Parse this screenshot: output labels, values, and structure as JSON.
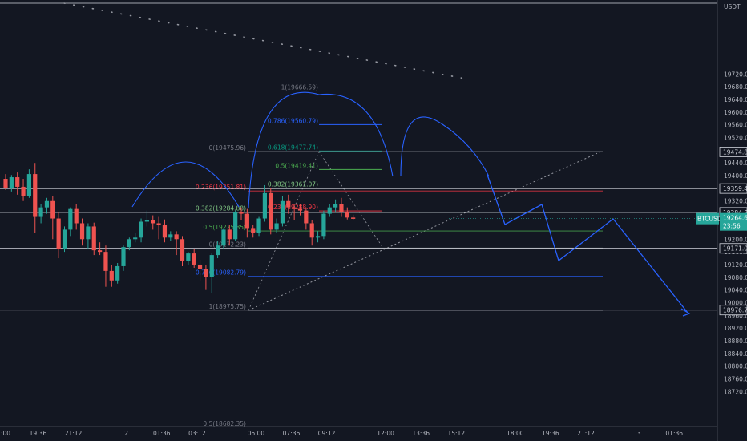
{
  "chart_data": {
    "type": "candlestick",
    "symbol": "BTCUSDT",
    "currency_label": "USDT",
    "countdown": "23:56",
    "ylim": [
      18680,
      19800
    ],
    "y_ticks": [
      19720,
      19680,
      19640,
      19600,
      19560,
      19520,
      19480,
      19440,
      19400,
      19360,
      19320,
      19280,
      19240,
      19200,
      19160,
      19120,
      19080,
      19040,
      19000,
      18960,
      18920,
      18880,
      18840,
      18800,
      18760,
      18720
    ],
    "y_tick_labels": [
      "19720.00",
      "19680.00",
      "19640.00",
      "19600.00",
      "19560.00",
      "19520.00",
      "19480.00",
      "19440.00",
      "19400.00",
      "19360.00",
      "19320.00",
      "19280.00",
      "19240.00",
      "19200.00",
      "19160.00",
      "19120.00",
      "19080.00",
      "19040.00",
      "19000.00",
      "18960.00",
      "18920.00",
      "18880.00",
      "18840.00",
      "18800.00",
      "18760.00",
      "18720.00"
    ],
    "x_labels": [
      {
        "label": ":00",
        "bar": 0
      },
      {
        "label": "19:36",
        "bar": 5.5
      },
      {
        "label": "21:12",
        "bar": 11.5
      },
      {
        "label": "2",
        "bar": 20.5
      },
      {
        "label": "01:36",
        "bar": 26.5
      },
      {
        "label": "03:12",
        "bar": 32.5
      },
      {
        "label": "06:00",
        "bar": 42.5
      },
      {
        "label": "07:36",
        "bar": 48.5
      },
      {
        "label": "09:12",
        "bar": 54.5
      },
      {
        "label": "12:00",
        "bar": 64.5
      },
      {
        "label": "13:36",
        "bar": 70.5
      },
      {
        "label": "15:12",
        "bar": 76.5
      },
      {
        "label": "18:00",
        "bar": 86.5
      },
      {
        "label": "19:36",
        "bar": 92.5
      },
      {
        "label": "21:12",
        "bar": 98.5
      },
      {
        "label": "3",
        "bar": 107.5
      },
      {
        "label": "01:36",
        "bar": 113.5
      }
    ],
    "candles": [
      {
        "o": 19390,
        "h": 19405,
        "c": 19360,
        "l": 19355
      },
      {
        "o": 19360,
        "h": 19402,
        "c": 19395,
        "l": 19350
      },
      {
        "o": 19395,
        "h": 19410,
        "c": 19365,
        "l": 19340
      },
      {
        "o": 19365,
        "h": 19390,
        "c": 19335,
        "l": 19320
      },
      {
        "o": 19335,
        "h": 19420,
        "c": 19405,
        "l": 19330
      },
      {
        "o": 19405,
        "h": 19440,
        "c": 19270,
        "l": 19220
      },
      {
        "o": 19270,
        "h": 19310,
        "c": 19300,
        "l": 19250
      },
      {
        "o": 19300,
        "h": 19330,
        "c": 19320,
        "l": 19280
      },
      {
        "o": 19320,
        "h": 19335,
        "c": 19265,
        "l": 19200
      },
      {
        "o": 19265,
        "h": 19285,
        "c": 19170,
        "l": 19140
      },
      {
        "o": 19170,
        "h": 19240,
        "c": 19230,
        "l": 19160
      },
      {
        "o": 19230,
        "h": 19300,
        "c": 19295,
        "l": 19210
      },
      {
        "o": 19295,
        "h": 19310,
        "c": 19250,
        "l": 19230
      },
      {
        "o": 19250,
        "h": 19265,
        "c": 19200,
        "l": 19180
      },
      {
        "o": 19200,
        "h": 19250,
        "c": 19240,
        "l": 19170
      },
      {
        "o": 19240,
        "h": 19252,
        "c": 19165,
        "l": 19150
      },
      {
        "o": 19165,
        "h": 19190,
        "c": 19160,
        "l": 19150
      },
      {
        "o": 19160,
        "h": 19180,
        "c": 19100,
        "l": 19050
      },
      {
        "o": 19100,
        "h": 19120,
        "c": 19070,
        "l": 19050
      },
      {
        "o": 19070,
        "h": 19125,
        "c": 19115,
        "l": 19060
      },
      {
        "o": 19115,
        "h": 19180,
        "c": 19175,
        "l": 19100
      },
      {
        "o": 19175,
        "h": 19205,
        "c": 19200,
        "l": 19165
      },
      {
        "o": 19200,
        "h": 19220,
        "c": 19205,
        "l": 19190
      },
      {
        "o": 19205,
        "h": 19265,
        "c": 19255,
        "l": 19190
      },
      {
        "o": 19255,
        "h": 19290,
        "c": 19260,
        "l": 19240
      },
      {
        "o": 19260,
        "h": 19275,
        "c": 19250,
        "l": 19230
      },
      {
        "o": 19250,
        "h": 19270,
        "c": 19245,
        "l": 19200
      },
      {
        "o": 19245,
        "h": 19262,
        "c": 19205,
        "l": 19190
      },
      {
        "o": 19205,
        "h": 19225,
        "c": 19215,
        "l": 19195
      },
      {
        "o": 19215,
        "h": 19225,
        "c": 19200,
        "l": 19150
      },
      {
        "o": 19200,
        "h": 19210,
        "c": 19130,
        "l": 19115
      },
      {
        "o": 19130,
        "h": 19160,
        "c": 19155,
        "l": 19120
      },
      {
        "o": 19155,
        "h": 19170,
        "c": 19120,
        "l": 19110
      },
      {
        "o": 19120,
        "h": 19135,
        "c": 19105,
        "l": 19070
      },
      {
        "o": 19105,
        "h": 19120,
        "c": 19080,
        "l": 19040
      },
      {
        "o": 19080,
        "h": 19155,
        "c": 19150,
        "l": 19030
      },
      {
        "o": 19150,
        "h": 19195,
        "c": 19180,
        "l": 19140
      },
      {
        "o": 19180,
        "h": 19235,
        "c": 19230,
        "l": 19170
      },
      {
        "o": 19230,
        "h": 19245,
        "c": 19200,
        "l": 19180
      },
      {
        "o": 19200,
        "h": 19290,
        "c": 19285,
        "l": 19195
      },
      {
        "o": 19285,
        "h": 19300,
        "c": 19280,
        "l": 19260
      },
      {
        "o": 19280,
        "h": 19295,
        "c": 19235,
        "l": 19205
      },
      {
        "o": 19235,
        "h": 19245,
        "c": 19220,
        "l": 19205
      },
      {
        "o": 19220,
        "h": 19270,
        "c": 19265,
        "l": 19210
      },
      {
        "o": 19265,
        "h": 19370,
        "c": 19345,
        "l": 19255
      },
      {
        "o": 19345,
        "h": 19360,
        "c": 19230,
        "l": 19215
      },
      {
        "o": 19230,
        "h": 19265,
        "c": 19250,
        "l": 19220
      },
      {
        "o": 19250,
        "h": 19335,
        "c": 19320,
        "l": 19240
      },
      {
        "o": 19320,
        "h": 19340,
        "c": 19300,
        "l": 19280
      },
      {
        "o": 19300,
        "h": 19310,
        "c": 19295,
        "l": 19260
      },
      {
        "o": 19295,
        "h": 19310,
        "c": 19290,
        "l": 19275
      },
      {
        "o": 19290,
        "h": 19300,
        "c": 19250,
        "l": 19230
      },
      {
        "o": 19250,
        "h": 19260,
        "c": 19205,
        "l": 19180
      },
      {
        "o": 19205,
        "h": 19225,
        "c": 19210,
        "l": 19190
      },
      {
        "o": 19210,
        "h": 19290,
        "c": 19280,
        "l": 19200
      },
      {
        "o": 19280,
        "h": 19310,
        "c": 19300,
        "l": 19270
      },
      {
        "o": 19300,
        "h": 19325,
        "c": 19310,
        "l": 19285
      },
      {
        "o": 19310,
        "h": 19330,
        "c": 19285,
        "l": 19270
      },
      {
        "o": 19285,
        "h": 19300,
        "c": 19268,
        "l": 19262
      },
      {
        "o": 19268,
        "h": 19277,
        "c": 19264,
        "l": 19260
      }
    ],
    "price_tags": [
      {
        "value": 19474.8,
        "label": "19474.80"
      },
      {
        "value": 19359.42,
        "label": "19359.42"
      },
      {
        "value": 19284.34,
        "label": "19284.34"
      },
      {
        "value": 19171.07,
        "label": "19171.07"
      },
      {
        "value": 18976.76,
        "label": "18976.76"
      }
    ],
    "current": {
      "value": 19264.65,
      "label": "19264.65"
    },
    "horizontal_lines": [
      19474.8,
      19359.42,
      19284.34,
      19171.07,
      18976.76
    ],
    "fib_left": {
      "levels": [
        {
          "label": "1(19666.59)",
          "value": 19666.59,
          "color": "#787b86"
        },
        {
          "label": "0.786(19560.79)",
          "value": 19560.79,
          "color": "#2962ff"
        },
        {
          "label": "0.618(19477.74)",
          "value": 19477.74,
          "color": "#089981"
        },
        {
          "label": "0.5(19419.41)",
          "value": 19419.41,
          "color": "#4caf50"
        },
        {
          "label": "0.382(19361.07)",
          "value": 19361.07,
          "color": "#81c784"
        },
        {
          "label": "0.236(19288.90)",
          "value": 19288.9,
          "color": "#f23645"
        }
      ]
    },
    "fib_right": {
      "levels": [
        {
          "label": "0(19475.96)",
          "value": 19475.96,
          "color": "#787b86"
        },
        {
          "label": "0.236(19351.81)",
          "value": 19351.81,
          "color": "#f23645"
        },
        {
          "label": "0.382(19284.88)",
          "value": 19284.88,
          "color": "#81c784"
        },
        {
          "label": "0.5(19225.85)",
          "value": 19225.85,
          "color": "#4caf50"
        },
        {
          "label": "0(19172.23)",
          "value": 19172.23,
          "color": "#787b86"
        },
        {
          "label": "0.786(19082.79)",
          "value": 19082.79,
          "color": "#2962ff"
        },
        {
          "label": "1(18975.75)",
          "value": 18975.75,
          "color": "#787b86"
        }
      ]
    },
    "bottom_clipped_label": "0.5(18682.35)",
    "colors": {
      "background": "#131722",
      "up": "#26a69a",
      "down": "#ef5350",
      "axis_text": "#b2b5be",
      "hline": "#d1d4dc",
      "projection": "#2962ff",
      "arc": "#2962ff",
      "dotted": "#9598a1",
      "current_tag": "#26a69a"
    }
  }
}
